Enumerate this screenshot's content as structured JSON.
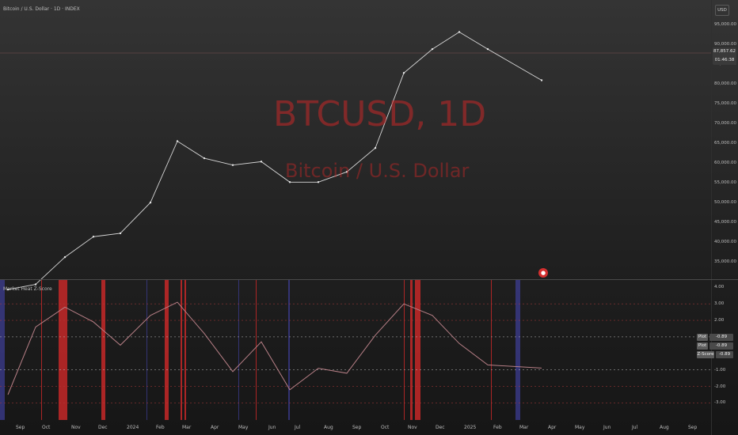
{
  "header": {
    "symbol_title": "Bitcoin / U.S. Dollar · 1D · INDEX",
    "watermark_symbol": "BTCUSD, 1D",
    "watermark_name": "Bitcoin / U.S. Dollar"
  },
  "price_axis": {
    "currency": "USD",
    "labels": [
      "95,000.00",
      "90,000.00",
      "85,000.00",
      "80,000.00",
      "75,000.00",
      "70,000.00",
      "65,000.00",
      "60,000.00",
      "55,000.00",
      "50,000.00",
      "45,000.00",
      "40,000.00",
      "35,000.00"
    ],
    "current_price": "87,857.62",
    "countdown": "01:46:38"
  },
  "indicator": {
    "title": "Market Heat Z-Score",
    "axis_labels": [
      "4.00",
      "3.00",
      "2.00",
      "1.00",
      "-1.00",
      "-2.00",
      "-3.00"
    ],
    "plot_badges": [
      {
        "key": "Plot",
        "value": "-0.89"
      },
      {
        "key": "Plot",
        "value": "-0.89"
      },
      {
        "key": "Z-Score",
        "value": "-0.89"
      }
    ],
    "levels": [
      3,
      2,
      1,
      -1,
      -2,
      -3
    ],
    "colors": {
      "hot_fill": "#c62828",
      "cold_fill": "#3f3f9a",
      "level_line": "#b33b3b",
      "zero_line": "#c0c0c0"
    }
  },
  "time_axis": {
    "labels": [
      "Sep",
      "Oct",
      "Nov",
      "Dec",
      "2024",
      "Feb",
      "Mar",
      "Apr",
      "May",
      "Jun",
      "Jul",
      "Aug",
      "Sep",
      "Oct",
      "Nov",
      "Dec",
      "2025",
      "Feb",
      "Mar",
      "Apr",
      "May",
      "Jun",
      "Jul",
      "Aug",
      "Sep"
    ]
  },
  "chart_data": {
    "type": "line",
    "title": "",
    "xlabel": "",
    "ylabel": "",
    "ylim": [
      30000,
      110000
    ],
    "x": [
      "2023-09",
      "2023-10",
      "2023-11",
      "2023-12",
      "2024-01",
      "2024-02",
      "2024-03",
      "2024-04",
      "2024-05",
      "2024-06",
      "2024-07",
      "2024-08",
      "2024-09",
      "2024-10",
      "2024-11",
      "2024-12",
      "2025-01",
      "2025-02",
      "2025-03"
    ],
    "series": [
      {
        "values": [
          26500,
          28000,
          36000,
          42000,
          43000,
          52000,
          70000,
          65000,
          63000,
          64000,
          58000,
          58000,
          61000,
          68000,
          90000,
          97000,
          102000,
          97000,
          87857.62
        ]
      }
    ],
    "zscore_values": [
      -2.5,
      1.6,
      2.8,
      1.9,
      0.5,
      2.3,
      3.1,
      1.2,
      -1.1,
      0.7,
      -2.2,
      -0.9,
      -1.2,
      1.1,
      3.0,
      2.3,
      0.6,
      -0.7,
      -0.89
    ],
    "zscore_ylim": [
      -3.6,
      4.3
    ]
  }
}
